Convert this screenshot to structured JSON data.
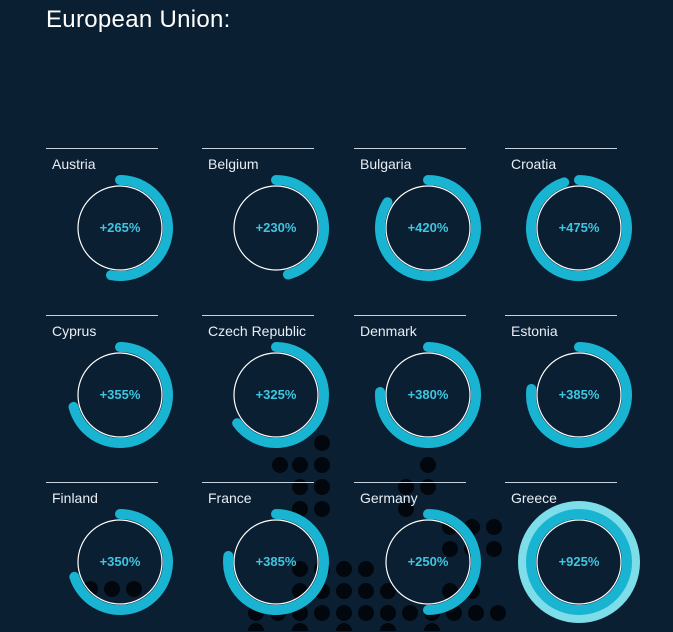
{
  "header": {
    "title": "European Union:"
  },
  "colors": {
    "background": "#0b1f33",
    "arc": "#19b4d2",
    "arc_overflow": "#7ddde9",
    "inner_circle": "#ffffff",
    "label": "#3ec6e0"
  },
  "chart_data": {
    "type": "radial-bar",
    "title": "",
    "unit": "%",
    "full_circle_value": 500,
    "categories": [
      "Austria",
      "Belgium",
      "Bulgaria",
      "Croatia",
      "Cyprus",
      "Czech Republic",
      "Denmark",
      "Estonia",
      "Finland",
      "France",
      "Germany",
      "Greece"
    ],
    "values": [
      265,
      230,
      420,
      475,
      355,
      325,
      380,
      385,
      350,
      385,
      250,
      925
    ],
    "labels": [
      "+265%",
      "+230%",
      "+420%",
      "+475%",
      "+355%",
      "+325%",
      "+380%",
      "+385%",
      "+350%",
      "+385%",
      "+250%",
      "+925%"
    ]
  }
}
